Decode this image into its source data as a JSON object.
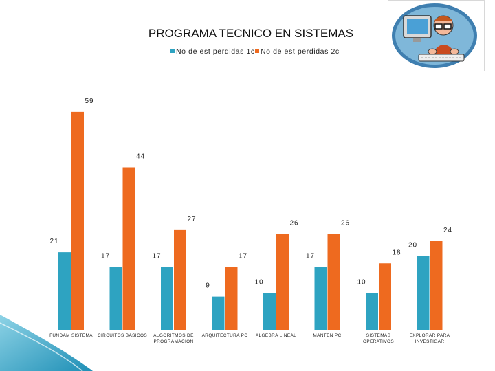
{
  "chart_data": {
    "type": "bar",
    "title": "PROGRAMA  TECNICO EN SISTEMAS",
    "categories": [
      [
        "FUNDAM SISTEMA"
      ],
      [
        "CIRCUITOS BASICOS"
      ],
      [
        "ALGORITMOS DE",
        "PROGRAMACION"
      ],
      [
        "ARQUITECTURA PC"
      ],
      [
        "ALGEBRA LINEAL"
      ],
      [
        "MANTEN PC"
      ],
      [
        "SISTEMAS",
        "OPERATIVOS"
      ],
      [
        "EXPLORAR PARA",
        "INVESTIGAR"
      ]
    ],
    "series": [
      {
        "name": "No de est perdidas 1c",
        "color": "#2ea3c1",
        "values": [
          21,
          17,
          17,
          9,
          10,
          17,
          10,
          20
        ]
      },
      {
        "name": "No de est perdidas 2c",
        "color": "#ee6a1f",
        "values": [
          59,
          44,
          27,
          17,
          26,
          26,
          18,
          24
        ]
      }
    ],
    "legend_position": "top-center",
    "grid": false,
    "ylim": [
      0,
      63
    ]
  },
  "logo": {
    "icon": "computer-user-icon"
  }
}
